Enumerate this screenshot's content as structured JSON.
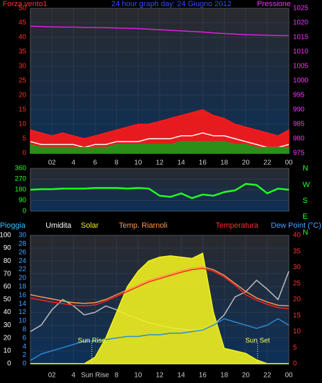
{
  "chart_data": [
    {
      "type": "line",
      "title": "24 hour graph day: 24 Giugno 2012",
      "x": [
        0,
        1,
        2,
        3,
        4,
        5,
        6,
        7,
        8,
        9,
        10,
        11,
        12,
        13,
        14,
        15,
        16,
        17,
        18,
        19,
        20,
        21,
        22,
        23,
        24
      ],
      "xlim": [
        0,
        24
      ],
      "xticks": [
        {
          "value": 2,
          "label": "02"
        },
        4,
        6,
        8,
        10,
        12,
        14,
        16,
        18,
        20,
        22,
        {
          "value": 24,
          "label": "00"
        }
      ],
      "ylim": [
        0,
        50
      ],
      "yticks": [
        0,
        5,
        10,
        15,
        20,
        25,
        30,
        35,
        40,
        45,
        50
      ],
      "y2lim": [
        975,
        1025
      ],
      "y2ticks": [
        975,
        980,
        985,
        990,
        995,
        1000,
        1005,
        1010,
        1015,
        1020,
        1025
      ],
      "axis_colors": {
        "y": "#ff3030",
        "y2": "#ff30ff"
      },
      "grid": true,
      "series": [
        {
          "name": "Forza vento1",
          "color": "#ff1a1a",
          "fill": true,
          "values": [
            8,
            7,
            6,
            7,
            6,
            5,
            6,
            7,
            8,
            9,
            10,
            10,
            11,
            12,
            13,
            14,
            15,
            13,
            12,
            10,
            9,
            8,
            7,
            6,
            8
          ]
        },
        {
          "color": "#ffffff",
          "values": [
            4,
            3,
            3,
            3,
            3,
            2,
            3,
            3,
            4,
            4,
            4,
            5,
            5,
            5,
            6,
            6,
            7,
            6,
            6,
            5,
            4,
            3,
            2,
            2,
            3
          ]
        },
        {
          "color": "#1a9a1a",
          "fill": true,
          "values": [
            3,
            2,
            2,
            2,
            2,
            2,
            2,
            2,
            3,
            3,
            3,
            3,
            3,
            3,
            4,
            4,
            4,
            4,
            4,
            3,
            3,
            2,
            2,
            2,
            2
          ]
        },
        {
          "name": "Pressione",
          "color": "#e020e0",
          "axis": "y2",
          "values": [
            1018.8,
            1018.7,
            1018.6,
            1018.5,
            1018.5,
            1018.4,
            1018.4,
            1018.3,
            1018.2,
            1018.1,
            1018.0,
            1017.8,
            1017.6,
            1017.4,
            1017.2,
            1017.0,
            1016.8,
            1016.5,
            1016.3,
            1016.1,
            1015.9,
            1015.8,
            1015.7,
            1015.6,
            1015.6
          ]
        }
      ]
    },
    {
      "type": "line",
      "x": [
        0,
        1,
        2,
        3,
        4,
        5,
        6,
        7,
        8,
        9,
        10,
        11,
        12,
        13,
        14,
        15,
        16,
        17,
        18,
        19,
        20,
        21,
        22,
        23,
        24
      ],
      "xlim": [
        0,
        24
      ],
      "ylim": [
        0,
        360
      ],
      "yticks": [
        0,
        90,
        180,
        270,
        360
      ],
      "axis_colors": {
        "y": "#20ff20"
      },
      "grid": true,
      "direction_labels": [
        "N",
        "W",
        "S",
        "E",
        "N"
      ],
      "series": [
        {
          "color": "#20ff20",
          "values": [
            180,
            185,
            185,
            190,
            190,
            190,
            195,
            195,
            195,
            190,
            195,
            190,
            130,
            120,
            150,
            110,
            140,
            130,
            160,
            175,
            230,
            220,
            150,
            190,
            180
          ]
        }
      ]
    },
    {
      "type": "line",
      "x": [
        0,
        1,
        2,
        3,
        4,
        5,
        6,
        7,
        8,
        9,
        10,
        11,
        12,
        13,
        14,
        15,
        16,
        17,
        18,
        19,
        20,
        21,
        22,
        23,
        24
      ],
      "xlim": [
        0,
        24
      ],
      "xticks": [
        {
          "value": 2,
          "label": "02"
        },
        4,
        {
          "value": 6,
          "label": "Sun Rise"
        },
        8,
        10,
        12,
        14,
        16,
        18,
        20,
        22,
        {
          "value": 24,
          "label": "00"
        }
      ],
      "ylim": [
        0,
        100
      ],
      "yticks": [
        0,
        10,
        20,
        30,
        40,
        50,
        60,
        70,
        80,
        90,
        100
      ],
      "y3lim": [
        0,
        30
      ],
      "y3ticks": [
        0,
        2,
        4,
        6,
        8,
        10,
        12,
        14,
        16,
        18,
        20,
        22,
        24,
        26,
        28,
        30
      ],
      "y2lim": [
        0,
        40
      ],
      "y2ticks": [
        0,
        5,
        10,
        15,
        20,
        25,
        30,
        35,
        40
      ],
      "axis_colors": {
        "y": "#ffffff",
        "y3": "#4aa0ff",
        "y2": "#ff3030"
      },
      "grid": true,
      "annotations": [
        {
          "x": 5.7,
          "text": "Sun Rise"
        },
        {
          "x": 21.1,
          "text": "Sun Set"
        }
      ],
      "series": [
        {
          "name": "Pioggia",
          "color": "#30e0ff",
          "axis": "y3",
          "values": [
            0,
            0,
            0,
            0,
            0,
            0,
            0,
            0,
            0,
            0,
            0,
            0,
            0,
            0,
            0,
            0,
            0,
            0,
            0,
            0,
            0,
            0,
            0,
            0,
            0
          ]
        },
        {
          "name": "Umidita",
          "color": "#c0c0c0",
          "values": [
            25,
            30,
            42,
            50,
            45,
            38,
            40,
            45,
            42,
            38,
            35,
            32,
            30,
            28,
            27,
            26,
            27,
            30,
            38,
            52,
            56,
            65,
            58,
            50,
            72
          ]
        },
        {
          "name": "Solar",
          "color": "#f0f020",
          "fill": true,
          "values": [
            0,
            0,
            0,
            0,
            0,
            0,
            5,
            20,
            40,
            60,
            72,
            80,
            83,
            84,
            83,
            82,
            86,
            40,
            12,
            10,
            8,
            3,
            0,
            0,
            0
          ]
        },
        {
          "name": "Temp. Riarnoli",
          "color": "#ff9a50",
          "axis": "y2",
          "values": [
            21.5,
            20.8,
            20.2,
            19.5,
            19,
            18.8,
            19,
            20,
            21.5,
            23,
            24.5,
            26,
            27,
            28,
            29,
            29.8,
            30.2,
            29.3,
            27.5,
            25,
            22.5,
            20.5,
            19.2,
            18.2,
            18
          ]
        },
        {
          "name": "Temperatura",
          "color": "#ff2020",
          "axis": "y2",
          "values": [
            20.5,
            19.8,
            19.2,
            18.7,
            18.2,
            18,
            18.3,
            19.5,
            21,
            22.5,
            24,
            25.5,
            26.5,
            27.5,
            28.5,
            29.3,
            29.7,
            28.8,
            27,
            24.5,
            21.5,
            19.8,
            18.5,
            17.5,
            17.1
          ]
        },
        {
          "name": "Dew Point (°C)",
          "color": "#2a8ad8",
          "axis": "y2",
          "values": [
            1,
            3,
            4,
            5,
            6,
            7,
            7,
            7.5,
            8,
            8.5,
            8.5,
            9,
            9,
            9.5,
            9.5,
            10,
            10.5,
            12,
            14,
            13,
            12,
            11,
            12,
            14,
            12
          ]
        }
      ]
    }
  ]
}
